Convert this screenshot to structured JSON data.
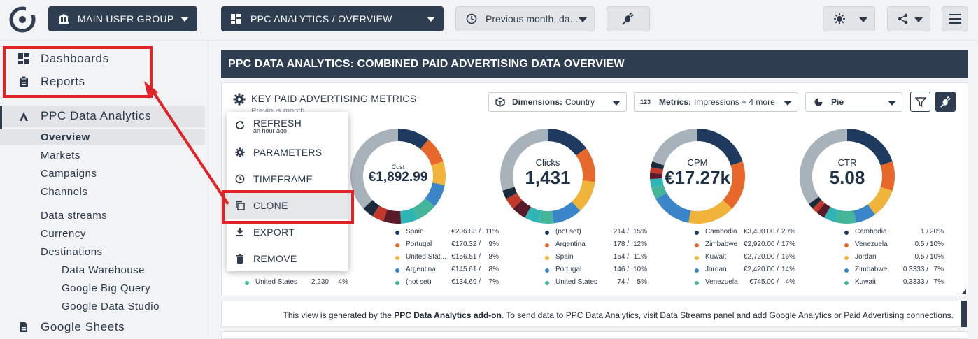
{
  "header": {
    "group_selector": "MAIN USER GROUP",
    "view_selector": "PPC ANALYTICS / OVERVIEW",
    "date_selector": "Previous month, da..."
  },
  "sidebar": {
    "dashboards": "Dashboards",
    "reports": "Reports",
    "section": "PPC Data Analytics",
    "items": [
      "Overview",
      "Markets",
      "Campaigns",
      "Channels"
    ],
    "data_streams": "Data streams",
    "currency": "Currency",
    "destinations": "Destinations",
    "destination_items": [
      "Data Warehouse",
      "Google Big Query",
      "Google Data Studio"
    ],
    "google_sheets": "Google Sheets"
  },
  "page": {
    "title": "PPC DATA ANALYTICS: COMBINED PAID ADVERTISING DATA OVERVIEW",
    "panel_title": "KEY PAID ADVERTISING METRICS",
    "panel_subtitle": "Previous month",
    "dimensions_label": "Dimensions:",
    "dimensions_value": "Country",
    "metrics_prefix": "123",
    "metrics_label": "Metrics:",
    "metrics_value": "Impressions + 4 more",
    "chart_type": "Pie"
  },
  "context_menu": {
    "refresh": "REFRESH",
    "refresh_sub": "an hour ago",
    "parameters": "PARAMETERS",
    "timeframe": "TIMEFRAME",
    "clone": "CLONE",
    "export": "EXPORT",
    "remove": "REMOVE"
  },
  "hidden_legend_row": {
    "name": "United States",
    "value": "2,230",
    "pct": "4%"
  },
  "chart_data": [
    {
      "type": "pie",
      "title": "Cost",
      "total": "€1,892.99",
      "legend": [
        {
          "name": "Spain",
          "value": "€206.83",
          "pct": "11%"
        },
        {
          "name": "Portugal",
          "value": "€170.32",
          "pct": "9%"
        },
        {
          "name": "United Stat...",
          "value": "€156.51",
          "pct": "8%"
        },
        {
          "name": "Argentina",
          "value": "€145.61",
          "pct": "8%"
        },
        {
          "name": "(not set)",
          "value": "€134.69",
          "pct": "7%"
        }
      ],
      "segments": [
        11,
        9,
        8,
        8,
        7,
        6,
        6,
        4,
        4,
        37
      ]
    },
    {
      "type": "pie",
      "title": "Clicks",
      "total": "1,431",
      "legend": [
        {
          "name": "(not set)",
          "value": "214",
          "pct": "15%"
        },
        {
          "name": "Argentina",
          "value": "178",
          "pct": "12%"
        },
        {
          "name": "Spain",
          "value": "154",
          "pct": "11%"
        },
        {
          "name": "Portugal",
          "value": "146",
          "pct": "10%"
        },
        {
          "name": "United States",
          "value": "74",
          "pct": "5%"
        }
      ],
      "segments": [
        15,
        12,
        11,
        10,
        5,
        5,
        5,
        4,
        3,
        30
      ]
    },
    {
      "type": "pie",
      "title": "CPM",
      "total": "€17.27k",
      "legend": [
        {
          "name": "Cambodia",
          "value": "€3,400.00",
          "pct": "20%"
        },
        {
          "name": "Zimbabwe",
          "value": "€2,920.00",
          "pct": "17%"
        },
        {
          "name": "Kuwait",
          "value": "€2,720.00",
          "pct": "16%"
        },
        {
          "name": "Jordan",
          "value": "€2,420.00",
          "pct": "14%"
        },
        {
          "name": "Venezuela",
          "value": "€745.00",
          "pct": "4%"
        }
      ],
      "segments": [
        20,
        17,
        16,
        14,
        4,
        3,
        2,
        2,
        2,
        20
      ]
    },
    {
      "type": "pie",
      "title": "CTR",
      "total": "5.08",
      "legend": [
        {
          "name": "Cambodia",
          "value": "1",
          "pct": "20%"
        },
        {
          "name": "Venezuela",
          "value": "0.5",
          "pct": "10%"
        },
        {
          "name": "Jordan",
          "value": "0.5",
          "pct": "10%"
        },
        {
          "name": "Zimbabwe",
          "value": "0.3333",
          "pct": "7%"
        },
        {
          "name": "Kuwait",
          "value": "0.3333",
          "pct": "7%"
        }
      ],
      "segments": [
        20,
        10,
        10,
        7,
        7,
        4,
        3,
        2,
        2,
        35
      ]
    }
  ],
  "colors": [
    "#1f3a5f",
    "#e8672a",
    "#f0b43a",
    "#3a86c8",
    "#45b59a",
    "#2fb5b5",
    "#5a1a2a",
    "#c0392b",
    "#1a2a3a",
    "#a8b2ba"
  ],
  "footer": {
    "prefix": "This view is generated by the ",
    "addon": "PPC Data Analytics add-on",
    "suffix": ". To send data to PPC Data Analytics, visit Data Streams panel and add Google Analytics or Paid Advertising connections."
  }
}
